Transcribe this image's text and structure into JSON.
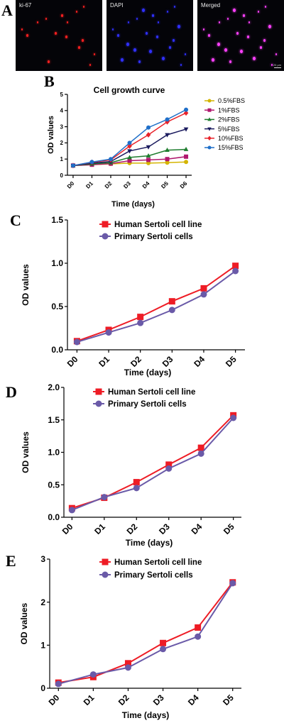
{
  "panel_a": {
    "letter": "A",
    "images": [
      {
        "label": "ki-67",
        "color": "#ff2020"
      },
      {
        "label": "DAPI",
        "color": "#3030ff"
      },
      {
        "label": "Merged",
        "color": "#ff40ff"
      }
    ],
    "scale_text": "20 μm"
  },
  "chart_data": [
    {
      "id": "B",
      "letter": "B",
      "type": "line",
      "title": "Cell growth curve",
      "xlabel": "Time (days)",
      "ylabel": "OD values",
      "categories": [
        "D0",
        "D1",
        "D2",
        "D3",
        "D4",
        "D5",
        "D6"
      ],
      "ylim": [
        0,
        5
      ],
      "yticks": [
        0,
        1,
        2,
        3,
        4,
        5
      ],
      "grid": false,
      "legend": "right",
      "series": [
        {
          "name": "0.5%FBS",
          "color": "#d4b400",
          "marker": "circle",
          "values": [
            0.6,
            0.65,
            0.7,
            0.75,
            0.75,
            0.78,
            0.82
          ]
        },
        {
          "name": "1%FBS",
          "color": "#b0186e",
          "marker": "square",
          "values": [
            0.6,
            0.65,
            0.72,
            0.9,
            0.95,
            1.0,
            1.15
          ]
        },
        {
          "name": "2%FBS",
          "color": "#1e7d2e",
          "marker": "triangle",
          "values": [
            0.6,
            0.7,
            0.78,
            1.1,
            1.2,
            1.55,
            1.6
          ]
        },
        {
          "name": "5%FBS",
          "color": "#1a1a5e",
          "marker": "triangle-down",
          "values": [
            0.6,
            0.75,
            0.85,
            1.5,
            1.75,
            2.5,
            2.85
          ]
        },
        {
          "name": "10%FBS",
          "color": "#e8222a",
          "marker": "diamond",
          "values": [
            0.6,
            0.8,
            0.95,
            1.8,
            2.5,
            3.3,
            3.85
          ]
        },
        {
          "name": "15%FBS",
          "color": "#1f6fc9",
          "marker": "circle",
          "values": [
            0.6,
            0.82,
            1.0,
            2.0,
            2.95,
            3.45,
            4.05
          ]
        }
      ]
    },
    {
      "id": "C",
      "letter": "C",
      "type": "line",
      "xlabel": "Time (days)",
      "ylabel": "OD values",
      "categories": [
        "D0",
        "D1",
        "D2",
        "D3",
        "D4",
        "D5"
      ],
      "ylim": [
        0,
        1.5
      ],
      "yticks": [
        0.0,
        0.5,
        1.0,
        1.5
      ],
      "ytick_labels": [
        "0.0",
        "0.5",
        "1.0",
        "1.5"
      ],
      "grid": false,
      "legend": "top",
      "series": [
        {
          "name": "Human Sertoli cell line",
          "color": "#ee1c25",
          "marker": "square",
          "values": [
            0.1,
            0.23,
            0.38,
            0.56,
            0.71,
            0.97
          ]
        },
        {
          "name": "Primary Sertoli cells",
          "color": "#6a5aa8",
          "marker": "circle",
          "values": [
            0.09,
            0.2,
            0.31,
            0.46,
            0.64,
            0.91
          ]
        }
      ]
    },
    {
      "id": "D",
      "letter": "D",
      "type": "line",
      "xlabel": "Time (days)",
      "ylabel": "OD values",
      "categories": [
        "D0",
        "D1",
        "D2",
        "D3",
        "D4",
        "D5"
      ],
      "ylim": [
        0,
        2.0
      ],
      "yticks": [
        0.0,
        0.5,
        1.0,
        1.5,
        2.0
      ],
      "ytick_labels": [
        "0.0",
        "0.5",
        "1.0",
        "1.5",
        "2.0"
      ],
      "grid": false,
      "legend": "top",
      "series": [
        {
          "name": "Human Sertoli cell line",
          "color": "#ee1c25",
          "marker": "square",
          "values": [
            0.14,
            0.3,
            0.54,
            0.81,
            1.07,
            1.57
          ]
        },
        {
          "name": "Primary Sertoli cells",
          "color": "#6a5aa8",
          "marker": "circle",
          "values": [
            0.11,
            0.31,
            0.45,
            0.75,
            0.98,
            1.53
          ]
        }
      ]
    },
    {
      "id": "E",
      "letter": "E",
      "type": "line",
      "xlabel": "Time (days)",
      "ylabel": "OD values",
      "categories": [
        "D0",
        "D1",
        "D2",
        "D3",
        "D4",
        "D5"
      ],
      "ylim": [
        0,
        3
      ],
      "yticks": [
        0,
        1,
        2,
        3
      ],
      "ytick_labels": [
        "0",
        "1",
        "2",
        "3"
      ],
      "grid": false,
      "legend": "top",
      "series": [
        {
          "name": "Human Sertoli cell line",
          "color": "#ee1c25",
          "marker": "square",
          "values": [
            0.13,
            0.26,
            0.58,
            1.05,
            1.41,
            2.46
          ]
        },
        {
          "name": "Primary Sertoli cells",
          "color": "#6a5aa8",
          "marker": "circle",
          "values": [
            0.1,
            0.32,
            0.48,
            0.91,
            1.2,
            2.44
          ]
        }
      ]
    }
  ]
}
